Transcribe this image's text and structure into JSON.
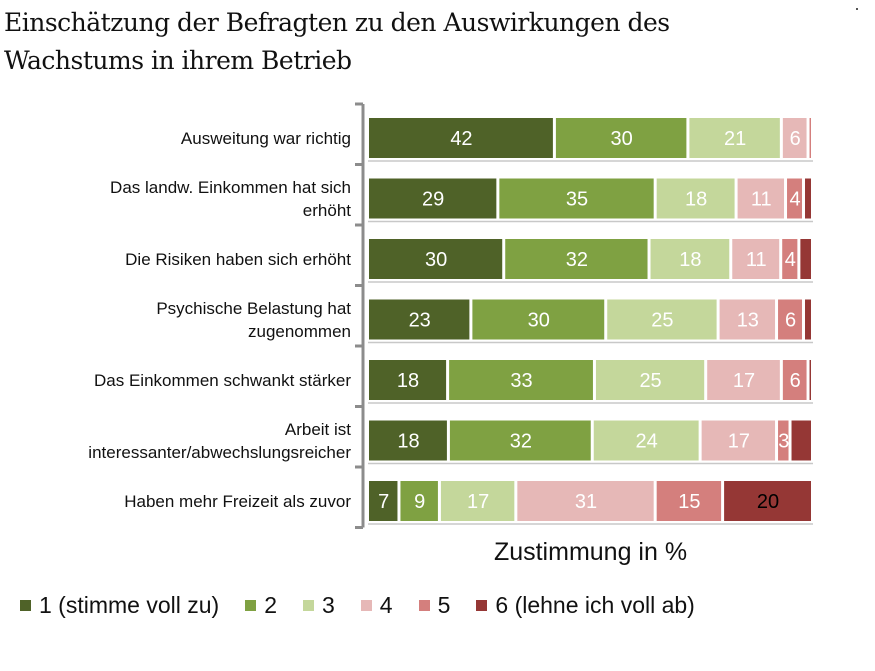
{
  "chart_data": {
    "type": "bar",
    "orientation": "horizontal",
    "stacked": true,
    "title": "Einschätzung der Befragten zu den Auswirkungen des Wachstums in ihrem Betrieb",
    "title_lines": [
      "Einschätzung der Befragten zu den Auswirkungen des",
      "Wachstums in ihrem Betrieb"
    ],
    "xlabel": "Zustimmung in %",
    "ylabel": "",
    "xlim": [
      0,
      100
    ],
    "grid": false,
    "legend_position": "bottom",
    "categories": [
      {
        "lines": [
          "Ausweitung war richtig"
        ]
      },
      {
        "lines": [
          "Das landw. Einkommen hat sich",
          "erhöht"
        ]
      },
      {
        "lines": [
          "Die Risiken haben sich erhöht"
        ]
      },
      {
        "lines": [
          "Psychische Belastung hat",
          "zugenommen"
        ]
      },
      {
        "lines": [
          "Das Einkommen schwankt stärker"
        ]
      },
      {
        "lines": [
          "Arbeit ist",
          "interessanter/abwechslungsreicher"
        ]
      },
      {
        "lines": [
          "Haben mehr Freizeit als zuvor"
        ]
      }
    ],
    "series": [
      {
        "name": "1 (stimme voll zu)",
        "color": "#4f6228",
        "label_color": "#ffffff",
        "values": [
          42,
          29,
          30,
          23,
          18,
          18,
          7
        ],
        "shown_labels": [
          true,
          true,
          true,
          true,
          true,
          true,
          true
        ]
      },
      {
        "name": "2",
        "color": "#7fa142",
        "label_color": "#ffffff",
        "values": [
          30,
          35,
          32,
          30,
          33,
          32,
          9
        ],
        "shown_labels": [
          true,
          true,
          true,
          true,
          true,
          true,
          true
        ]
      },
      {
        "name": "3",
        "color": "#c4d79b",
        "label_color": "#ffffff",
        "values": [
          21,
          18,
          18,
          25,
          25,
          24,
          17
        ],
        "shown_labels": [
          true,
          true,
          true,
          true,
          true,
          true,
          true
        ]
      },
      {
        "name": "4",
        "color": "#e6b8b7",
        "label_color": "#ffffff",
        "values": [
          6,
          11,
          11,
          13,
          17,
          17,
          31
        ],
        "shown_labels": [
          true,
          true,
          true,
          true,
          true,
          true,
          true
        ]
      },
      {
        "name": "5",
        "color": "#d47f7d",
        "label_color": "#ffffff",
        "values": [
          1,
          4,
          4,
          6,
          6,
          3,
          15
        ],
        "shown_labels": [
          false,
          true,
          true,
          true,
          true,
          true,
          true
        ]
      },
      {
        "name": "6 (lehne ich voll ab)",
        "color": "#953735",
        "label_color": "#000000",
        "values": [
          0,
          2,
          3,
          2,
          1,
          5,
          20
        ],
        "shown_labels": [
          false,
          false,
          false,
          false,
          false,
          false,
          true
        ]
      }
    ]
  }
}
